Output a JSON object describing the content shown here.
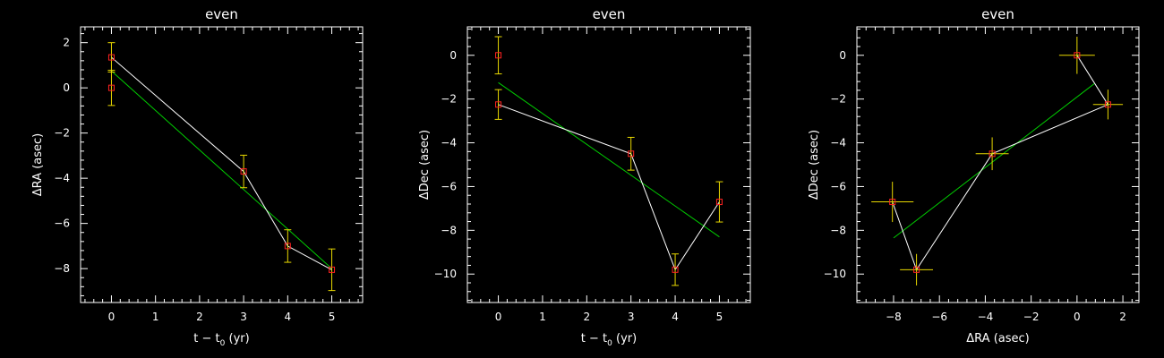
{
  "colors": {
    "background": "#000000",
    "axes": "#ffffff",
    "data_line": "#ffffff",
    "fit_line": "#00cc00",
    "error_bar": "#e8d800",
    "marker": "#ff2222"
  },
  "chart_data": [
    {
      "type": "scatter",
      "title": "even",
      "xlabel": "t − t",
      "xlabel_sub": "0",
      "xlabel_suffix": " (yr)",
      "ylabel": "ΔRA (asec)",
      "xlim": [
        -0.7,
        5.7
      ],
      "ylim": [
        -9.5,
        2.7
      ],
      "xticks": [
        0,
        1,
        2,
        3,
        4,
        5
      ],
      "yticks": [
        -8,
        -6,
        -4,
        -2,
        0,
        2
      ],
      "points": [
        {
          "x": 0,
          "y": 1.35,
          "yerr": 0.65
        },
        {
          "x": 0,
          "y": 0.0,
          "yerr": 0.78
        },
        {
          "x": 3,
          "y": -3.7,
          "yerr": 0.72
        },
        {
          "x": 4,
          "y": -7.0,
          "yerr": 0.72
        },
        {
          "x": 5,
          "y": -8.05,
          "yerr": 0.92
        }
      ],
      "data_line": [
        [
          0,
          1.35
        ],
        [
          3,
          -3.7
        ],
        [
          4,
          -7.0
        ],
        [
          5,
          -8.05
        ]
      ],
      "fit_line": [
        [
          0,
          0.75
        ],
        [
          5,
          -8.0
        ]
      ]
    },
    {
      "type": "scatter",
      "title": "even",
      "xlabel": "t − t",
      "xlabel_sub": "0",
      "xlabel_suffix": " (yr)",
      "ylabel": "ΔDec (asec)",
      "xlim": [
        -0.7,
        5.7
      ],
      "ylim": [
        -11.3,
        1.3
      ],
      "xticks": [
        0,
        1,
        2,
        3,
        4,
        5
      ],
      "yticks": [
        -10,
        -8,
        -6,
        -4,
        -2,
        0
      ],
      "points": [
        {
          "x": 0,
          "y": 0.0,
          "yerr": 0.85
        },
        {
          "x": 0,
          "y": -2.25,
          "yerr": 0.68
        },
        {
          "x": 3,
          "y": -4.5,
          "yerr": 0.75
        },
        {
          "x": 4,
          "y": -9.8,
          "yerr": 0.72
        },
        {
          "x": 5,
          "y": -6.7,
          "yerr": 0.92
        }
      ],
      "data_line": [
        [
          0,
          -2.25
        ],
        [
          3,
          -4.5
        ],
        [
          4,
          -9.8
        ],
        [
          5,
          -6.7
        ]
      ],
      "fit_line": [
        [
          0,
          -1.25
        ],
        [
          5,
          -8.3
        ]
      ]
    },
    {
      "type": "scatter",
      "title": "even",
      "xlabel": "ΔRA (asec)",
      "xlabel_sub": "",
      "xlabel_suffix": "",
      "ylabel": "ΔDec (asec)",
      "xlim": [
        -9.6,
        2.7
      ],
      "ylim": [
        -11.3,
        1.3
      ],
      "xticks": [
        -8,
        -6,
        -4,
        -2,
        0,
        2
      ],
      "yticks": [
        -10,
        -8,
        -6,
        -4,
        -2,
        0
      ],
      "points": [
        {
          "x": 0.0,
          "y": 0.0,
          "xerr": 0.78,
          "yerr": 0.85
        },
        {
          "x": 1.35,
          "y": -2.25,
          "xerr": 0.65,
          "yerr": 0.68
        },
        {
          "x": -3.7,
          "y": -4.5,
          "xerr": 0.72,
          "yerr": 0.75
        },
        {
          "x": -7.0,
          "y": -9.8,
          "xerr": 0.72,
          "yerr": 0.72
        },
        {
          "x": -8.05,
          "y": -6.7,
          "xerr": 0.92,
          "yerr": 0.92
        }
      ],
      "data_line": [
        [
          1.35,
          -2.25
        ],
        [
          0.0,
          0.0
        ],
        [
          1.35,
          -2.25
        ],
        [
          -3.7,
          -4.5
        ],
        [
          -7.0,
          -9.8
        ],
        [
          -8.05,
          -6.7
        ]
      ],
      "fit_line": [
        [
          -8.0,
          -8.35
        ],
        [
          0.75,
          -1.3
        ]
      ]
    }
  ]
}
